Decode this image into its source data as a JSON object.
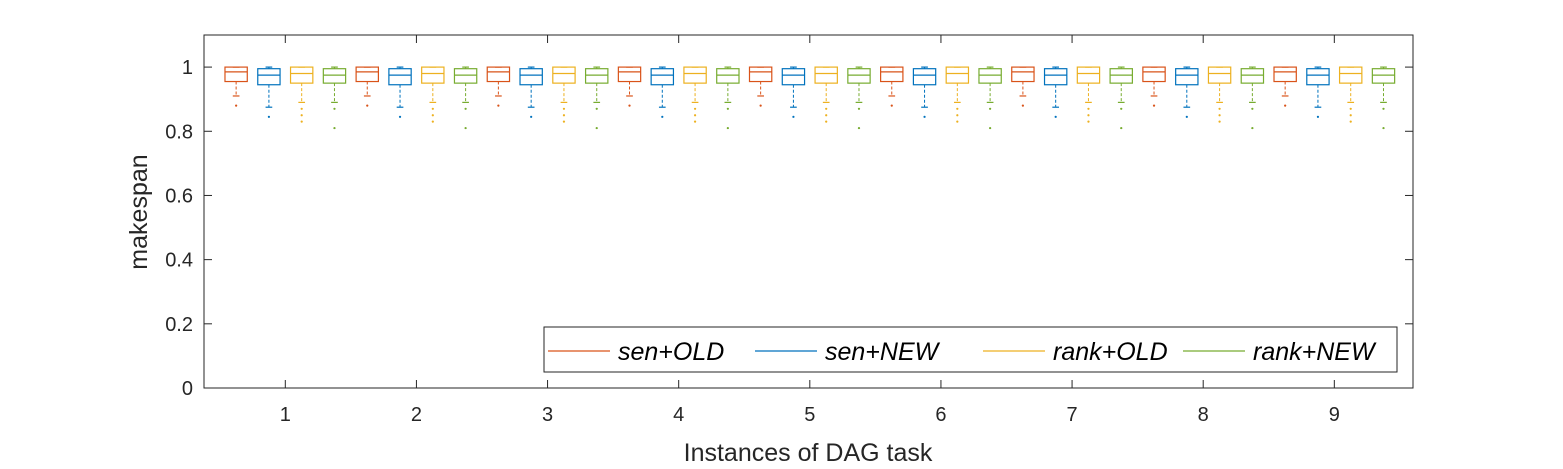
{
  "chart_data": {
    "type": "box",
    "xlabel": "Instances of DAG task",
    "ylabel": "makespan",
    "ylim": [
      0,
      1.1
    ],
    "yticks": [
      "0",
      "0.2",
      "0.4",
      "0.6",
      "0.8",
      "1"
    ],
    "categories": [
      "1",
      "2",
      "3",
      "4",
      "5",
      "6",
      "7",
      "8",
      "9"
    ],
    "legend_position": "bottom-right",
    "grid": false,
    "series": [
      {
        "name": "sen+OLD",
        "color": "#D95319",
        "box": {
          "whisker_low": 0.91,
          "q1": 0.955,
          "median": 0.985,
          "q3": 1.0,
          "whisker_high": 1.0
        },
        "outliers": [
          0.88
        ]
      },
      {
        "name": "sen+NEW",
        "color": "#0072BD",
        "box": {
          "whisker_low": 0.875,
          "q1": 0.945,
          "median": 0.975,
          "q3": 0.995,
          "whisker_high": 1.0
        },
        "outliers": [
          0.845
        ]
      },
      {
        "name": "rank+OLD",
        "color": "#EDB120",
        "box": {
          "whisker_low": 0.89,
          "q1": 0.95,
          "median": 0.98,
          "q3": 1.0,
          "whisker_high": 1.0
        },
        "outliers": [
          0.87,
          0.85,
          0.83
        ]
      },
      {
        "name": "rank+NEW",
        "color": "#77AC30",
        "box": {
          "whisker_low": 0.89,
          "q1": 0.95,
          "median": 0.975,
          "q3": 0.995,
          "whisker_high": 1.0
        },
        "outliers": [
          0.87,
          0.81
        ]
      }
    ]
  }
}
